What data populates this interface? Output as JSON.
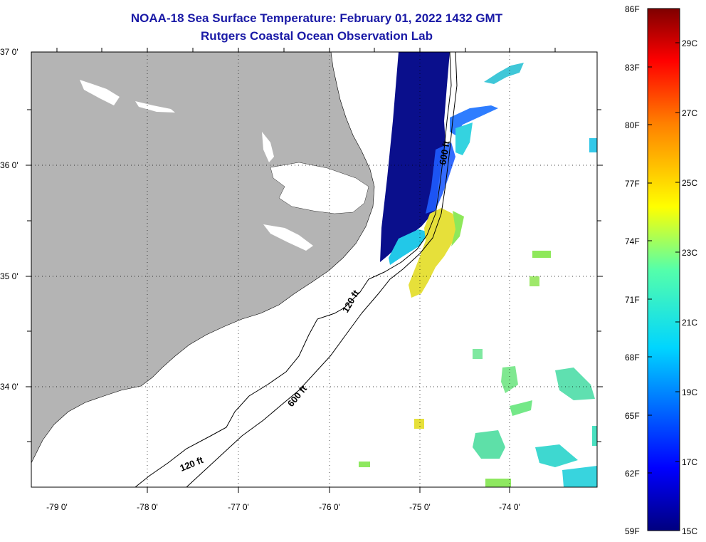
{
  "title": "NOAA-18 Sea Surface Temperature:  February 01, 2022 1432 GMT",
  "subtitle": "Rutgers Coastal Ocean Observation Lab",
  "y_ticks": [
    "37 0'",
    "36 0'",
    "35 0'",
    "34 0'"
  ],
  "x_ticks": [
    "-79 0'",
    "-78 0'",
    "-77 0'",
    "-76 0'",
    "-75 0'",
    "-74 0'"
  ],
  "isobath_labels": [
    "120 ft",
    "600 ft",
    "120 ft",
    "600 ft"
  ],
  "colorbar": {
    "fahrenheit": [
      "86F",
      "83F",
      "80F",
      "77F",
      "74F",
      "71F",
      "68F",
      "65F",
      "62F",
      "59F"
    ],
    "celsius": [
      "29C",
      "27C",
      "25C",
      "23C",
      "21C",
      "19C",
      "17C",
      "15C"
    ]
  },
  "colors": {
    "land": "#b4b4b4",
    "title": "#1a1aa6",
    "cold": "#0a0f8c",
    "warm_water": "#e6e03a"
  }
}
